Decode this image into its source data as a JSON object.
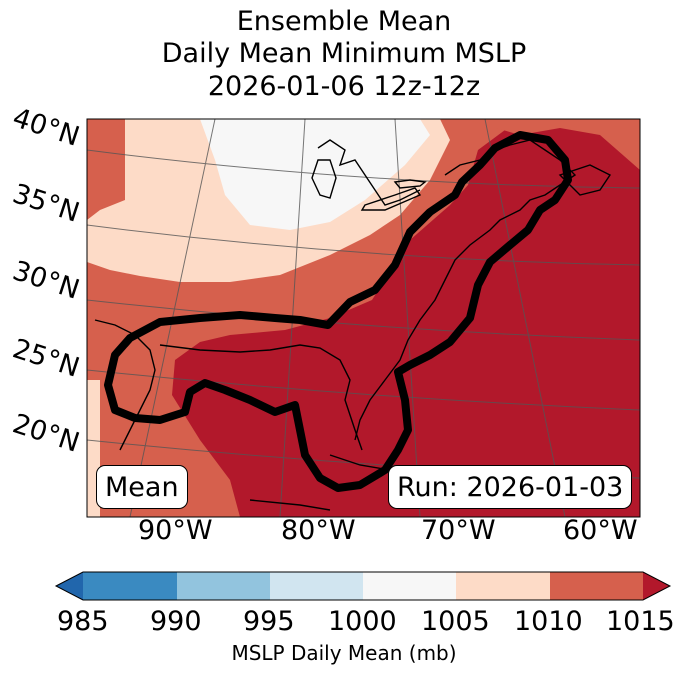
{
  "title": {
    "line1": "Ensemble Mean",
    "line2": "Daily Mean Minimum MSLP",
    "line3": "2026-01-06 12z-12z"
  },
  "map": {
    "lat_labels": [
      "40°N",
      "35°N",
      "30°N",
      "25°N",
      "20°N"
    ],
    "lon_labels": [
      "90°W",
      "80°W",
      "70°W",
      "60°W"
    ],
    "left_box": "Mean",
    "right_box": "Run: 2026-01-03"
  },
  "colorbar": {
    "label": "MSLP Daily Mean (mb)",
    "ticks": [
      "985",
      "990",
      "995",
      "1000",
      "1005",
      "1010",
      "1015"
    ],
    "colors": [
      "#2166ac",
      "#3a8ac1",
      "#92c4de",
      "#d1e5f0",
      "#f7f7f7",
      "#fddbc7",
      "#d6604d",
      "#b2182b"
    ]
  }
}
